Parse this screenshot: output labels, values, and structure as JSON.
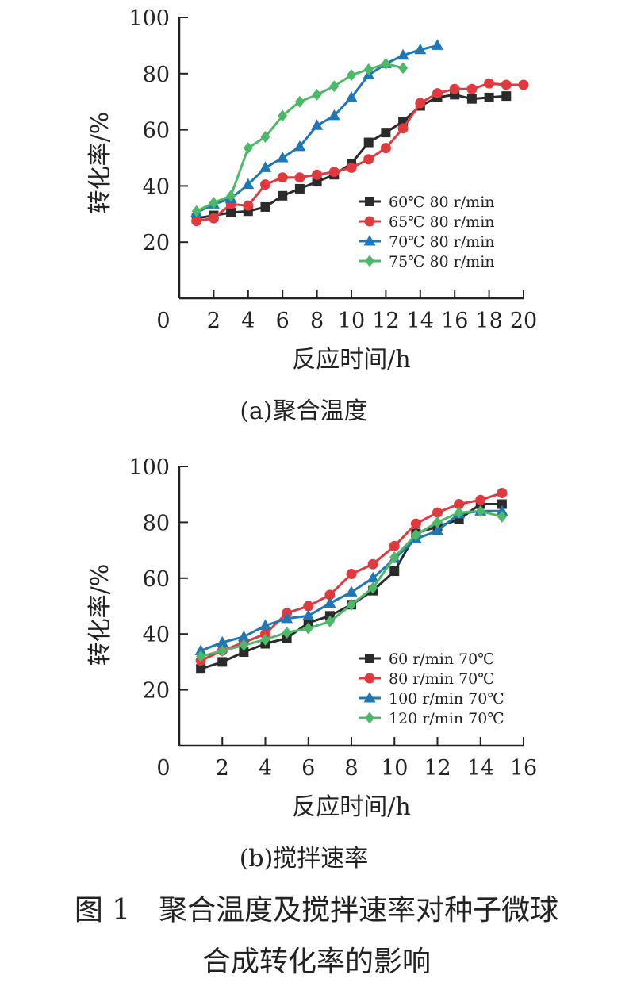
{
  "chart_data": [
    {
      "type": "line",
      "caption": "(a)聚合温度",
      "xlabel": "反应时间/h",
      "ylabel": "转化率/%",
      "xlim": [
        0,
        20
      ],
      "ylim": [
        0,
        100
      ],
      "x_ticks": [
        "0",
        "2",
        "4",
        "6",
        "8",
        "10",
        "12",
        "14",
        "16",
        "18",
        "20"
      ],
      "y_ticks": [
        "20",
        "40",
        "60",
        "80",
        "100"
      ],
      "legend_position": "lower-right",
      "series": [
        {
          "name": "60℃ 80 r/min",
          "color": "#2b2b2b",
          "marker": "square",
          "x": [
            1,
            2,
            3,
            4,
            5,
            6,
            7,
            8,
            9,
            10,
            11,
            12,
            13,
            14,
            15,
            16,
            17,
            18,
            19
          ],
          "y": [
            28.5,
            29.5,
            30.5,
            31.0,
            32.5,
            36.5,
            39.0,
            41.5,
            44.0,
            48.0,
            55.5,
            59.0,
            63.0,
            68.5,
            71.5,
            72.5,
            71.0,
            71.5,
            72.0
          ]
        },
        {
          "name": "65℃ 80 r/min",
          "color": "#e03a3e",
          "marker": "circle",
          "x": [
            1,
            2,
            3,
            4,
            5,
            6,
            7,
            8,
            9,
            10,
            11,
            12,
            13,
            14,
            15,
            16,
            17,
            18,
            19,
            20
          ],
          "y": [
            27.5,
            28.5,
            33.5,
            33.0,
            40.5,
            43.0,
            43.0,
            44.0,
            45.0,
            46.5,
            49.5,
            53.5,
            60.5,
            69.5,
            73.0,
            74.5,
            74.5,
            76.5,
            76.0,
            76.0
          ]
        },
        {
          "name": "70℃ 80 r/min",
          "color": "#1f77b4",
          "marker": "triangle",
          "x": [
            1,
            2,
            3,
            4,
            5,
            6,
            7,
            8,
            9,
            10,
            11,
            12,
            13,
            14,
            15
          ],
          "y": [
            30.5,
            33.5,
            35.5,
            40.5,
            46.5,
            50.0,
            54.0,
            61.5,
            65.0,
            71.5,
            79.5,
            83.5,
            86.5,
            88.5,
            90.0
          ]
        },
        {
          "name": "75℃ 80 r/min",
          "color": "#4db86a",
          "marker": "diamond",
          "x": [
            1,
            2,
            3,
            4,
            5,
            6,
            7,
            8,
            9,
            10,
            11,
            12,
            13
          ],
          "y": [
            31.0,
            34.0,
            36.5,
            53.5,
            57.5,
            65.0,
            70.0,
            72.5,
            75.5,
            79.5,
            81.5,
            83.5,
            82.0
          ]
        }
      ]
    },
    {
      "type": "line",
      "caption": "(b)搅拌速率",
      "xlabel": "反应时间/h",
      "ylabel": "转化率/%",
      "xlim": [
        0,
        16
      ],
      "ylim": [
        0,
        100
      ],
      "x_ticks": [
        "0",
        "2",
        "4",
        "6",
        "8",
        "10",
        "12",
        "14",
        "16"
      ],
      "y_ticks": [
        "20",
        "40",
        "60",
        "80",
        "100"
      ],
      "legend_position": "lower-right",
      "series": [
        {
          "name": "60 r/min 70℃",
          "color": "#2b2b2b",
          "marker": "square",
          "x": [
            1,
            2,
            3,
            4,
            5,
            6,
            7,
            8,
            9,
            10,
            11,
            12,
            13,
            14,
            15
          ],
          "y": [
            27.5,
            30.0,
            33.5,
            36.5,
            38.5,
            44.0,
            46.5,
            50.5,
            55.5,
            62.5,
            76.0,
            78.5,
            81.0,
            86.5,
            86.5
          ]
        },
        {
          "name": "80 r/min 70℃",
          "color": "#e03a3e",
          "marker": "circle",
          "x": [
            1,
            2,
            3,
            4,
            5,
            6,
            7,
            8,
            9,
            10,
            11,
            12,
            13,
            14,
            15
          ],
          "y": [
            30.5,
            34.0,
            37.0,
            40.0,
            47.5,
            50.0,
            54.0,
            61.5,
            65.0,
            71.5,
            79.5,
            83.5,
            86.5,
            88.0,
            90.5
          ]
        },
        {
          "name": "100 r/min 70℃",
          "color": "#1f77b4",
          "marker": "triangle",
          "x": [
            1,
            2,
            3,
            4,
            5,
            6,
            7,
            8,
            9,
            10,
            11,
            12,
            13,
            14,
            15
          ],
          "y": [
            34.0,
            37.0,
            39.0,
            43.0,
            45.5,
            46.5,
            51.0,
            55.0,
            60.0,
            67.0,
            74.0,
            77.0,
            83.0,
            84.0,
            84.0
          ]
        },
        {
          "name": "120 r/min 70℃",
          "color": "#4db86a",
          "marker": "diamond",
          "x": [
            1,
            2,
            3,
            4,
            5,
            6,
            7,
            8,
            9,
            10,
            11,
            12,
            13,
            14,
            15
          ],
          "y": [
            32.0,
            34.0,
            36.0,
            38.0,
            40.5,
            42.0,
            44.5,
            50.5,
            56.5,
            67.5,
            75.5,
            80.0,
            83.5,
            84.0,
            82.0
          ]
        }
      ]
    }
  ],
  "figure_caption": {
    "line1": "图 1　聚合温度及搅拌速率对种子微球",
    "line2": "合成转化率的影响"
  }
}
